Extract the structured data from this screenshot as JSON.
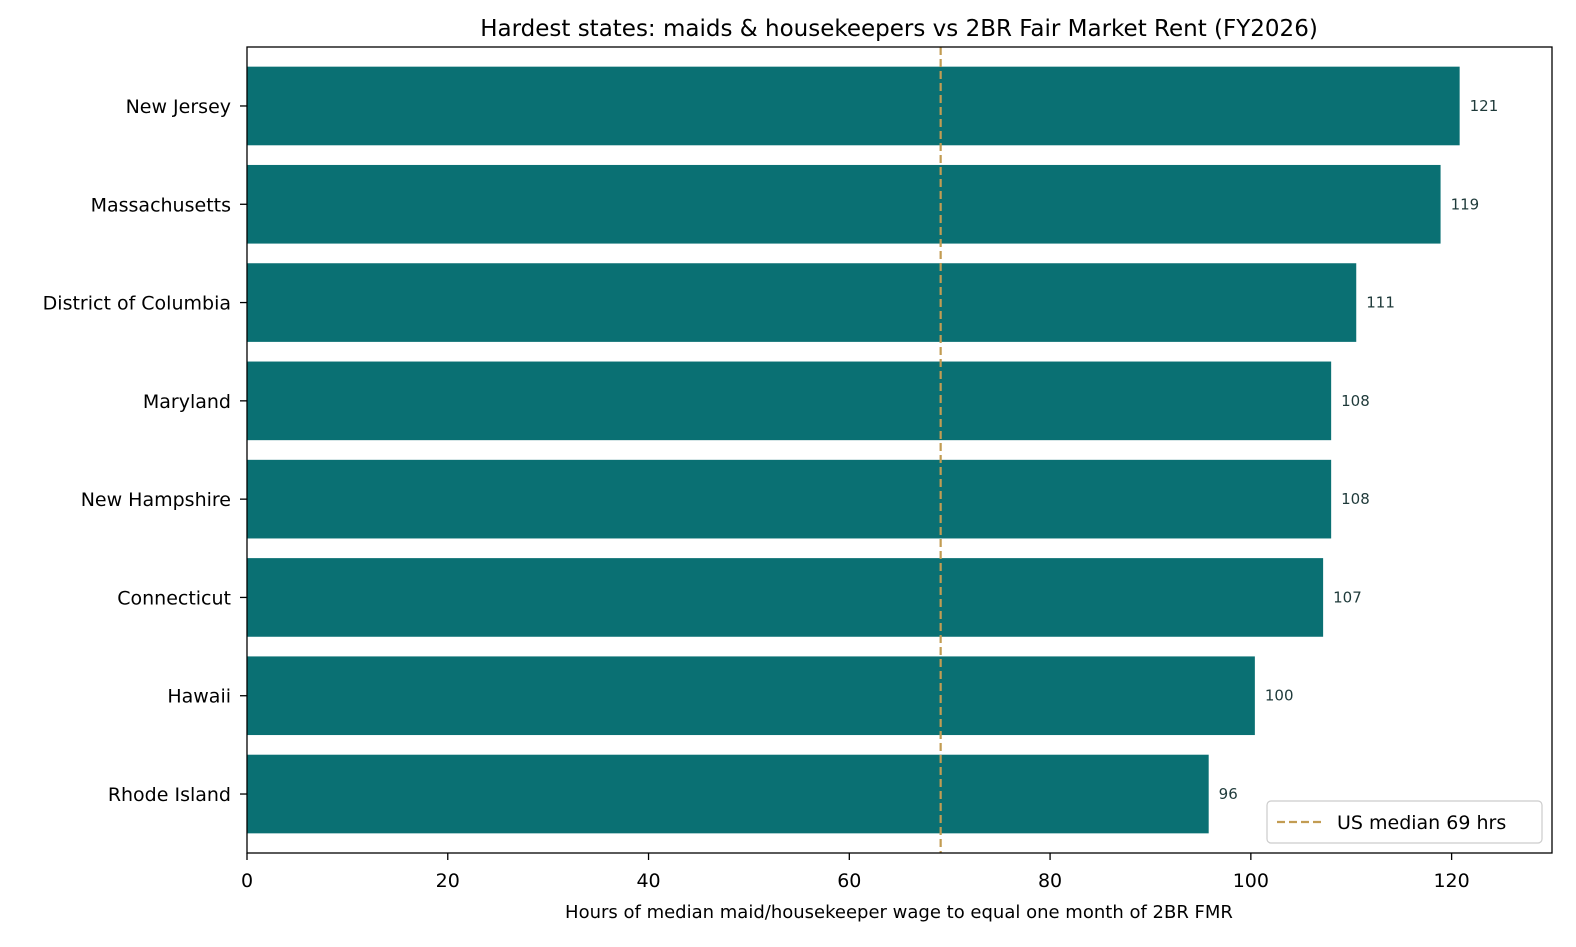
{
  "chart_data": {
    "type": "bar",
    "orientation": "horizontal",
    "title": "Hardest states: maids & housekeepers vs 2BR Fair Market Rent (FY2026)",
    "xlabel": "Hours of median maid/housekeeper wage to equal one month of 2BR FMR",
    "ylabel": "",
    "xlim": [
      0,
      130
    ],
    "xticks": [
      0,
      20,
      40,
      60,
      80,
      100,
      120
    ],
    "categories": [
      "New Jersey",
      "Massachusetts",
      "District of Columbia",
      "Maryland",
      "New Hampshire",
      "Connecticut",
      "Hawaii",
      "Rhode Island"
    ],
    "values": [
      120.8,
      118.9,
      110.5,
      108.0,
      108.0,
      107.2,
      100.4,
      95.8
    ],
    "data_labels": [
      "121",
      "119",
      "111",
      "108",
      "108",
      "107",
      "100",
      "96"
    ],
    "reference_line": {
      "value": 69.1,
      "label": "US median 69 hrs",
      "style": "dashed"
    },
    "legend": {
      "position": "lower-right",
      "entries": [
        "US median 69 hrs"
      ]
    },
    "grid": false,
    "colors": {
      "bar": "#0a7073",
      "reference_line": "#c29c52",
      "data_label": "#1f3a3a",
      "axis": "#000000"
    }
  }
}
